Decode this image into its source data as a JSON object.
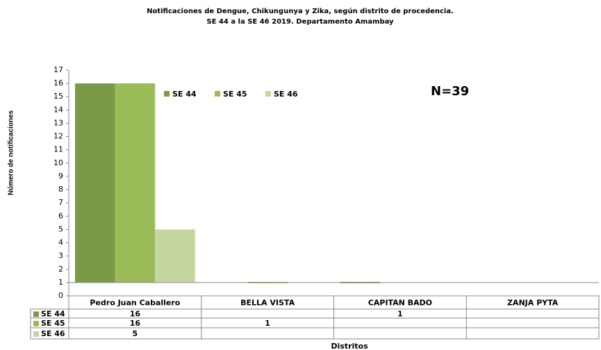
{
  "chart_data": {
    "type": "bar",
    "title": "Notificaciones de Dengue, Chikungunya y Zika, según distrito de procedencia.",
    "subtitle": "SE 44 a la SE 46 2019. Departamento Amambay",
    "y_label": "Número de notificaciones",
    "x_label": "Distritos",
    "annotation": "N=39",
    "categories": [
      "Pedro Juan Caballero",
      "BELLA VISTA",
      "CAPITAN BADO",
      "ZANJA PYTA"
    ],
    "series": [
      {
        "name": "SE 44",
        "color": "#7a9a48",
        "values": [
          16,
          null,
          1,
          null
        ]
      },
      {
        "name": "SE 45",
        "color": "#9bbb59",
        "values": [
          16,
          1,
          null,
          null
        ]
      },
      {
        "name": "SE 46",
        "color": "#c4d6a0",
        "values": [
          5,
          null,
          null,
          null
        ]
      }
    ],
    "ylim": [
      0,
      17
    ],
    "yticks": [
      0,
      1,
      2,
      3,
      4,
      5,
      6,
      7,
      8,
      9,
      10,
      11,
      12,
      13,
      14,
      15,
      16,
      17
    ],
    "x_axis_at": 1,
    "legend": "top",
    "data_table": true
  }
}
